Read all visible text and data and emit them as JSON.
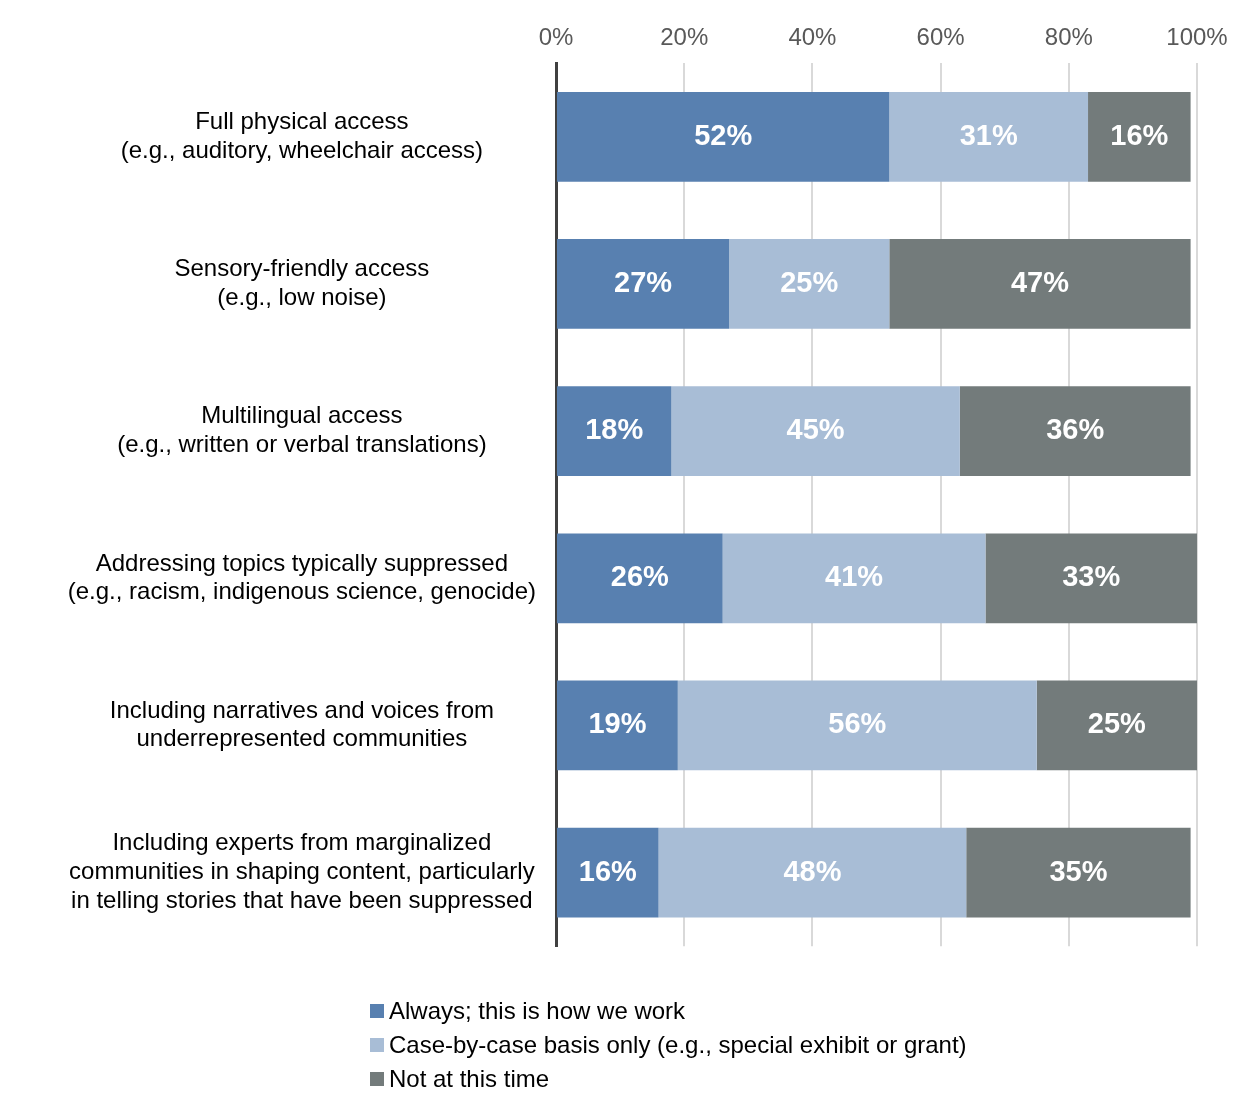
{
  "chart_data": {
    "type": "bar",
    "orientation": "horizontal",
    "stacked": true,
    "grid": "x",
    "legend": "bottom",
    "categories": [
      "Full physical access\n(e.g., auditory, wheelchair access)",
      "Sensory-friendly access\n(e.g., low noise)",
      "Multilingual access\n(e.g., written or verbal translations)",
      "Addressing topics typically suppressed\n(e.g., racism, indigenous science, genocide)",
      "Including narratives and voices from\nunderrepresented communities",
      "Including experts from marginalized\ncommunities in shaping content, particularly\nin telling stories that have been suppressed"
    ],
    "series": [
      {
        "name": "Always; this is how we work",
        "color": "#5880b0",
        "values": [
          52,
          27,
          18,
          26,
          19,
          16
        ],
        "value_labels": [
          "52%",
          "27%",
          "18%",
          "26%",
          "19%",
          "16%"
        ]
      },
      {
        "name": "Case-by-case basis only (e.g., special exhibit or grant)",
        "color": "#a8bdd6",
        "values": [
          31,
          25,
          45,
          41,
          56,
          48
        ],
        "value_labels": [
          "31%",
          "25%",
          "45%",
          "41%",
          "56%",
          "48%"
        ]
      },
      {
        "name": "Not at this time",
        "color": "#737b7b",
        "values": [
          16,
          47,
          36,
          33,
          25,
          35
        ],
        "value_labels": [
          "16%",
          "47%",
          "36%",
          "33%",
          "25%",
          "35%"
        ]
      }
    ],
    "xlim": [
      0,
      100
    ],
    "xticks": [
      {
        "value": 0,
        "label": "0%"
      },
      {
        "value": 20,
        "label": "20%"
      },
      {
        "value": 40,
        "label": "40%"
      },
      {
        "value": 60,
        "label": "60%"
      },
      {
        "value": 80,
        "label": "80%"
      },
      {
        "value": 100,
        "label": "100%"
      }
    ]
  }
}
